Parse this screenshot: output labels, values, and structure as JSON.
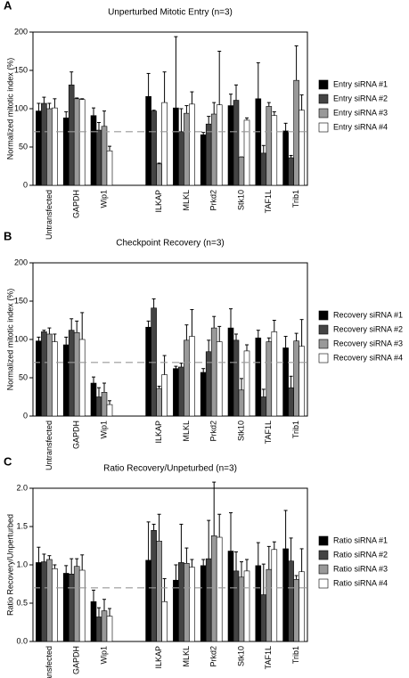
{
  "chart_data": [
    {
      "type": "bar",
      "panel_label": "A",
      "title": "Unperturbed Mitotic Entry (n=3)",
      "y_label": "Normalized mitotic index (%)",
      "categories": [
        "Untransfected",
        "GAPDH",
        "Wip1",
        null,
        "ILKAP",
        "MLKL",
        "Prkd2",
        "Stk10",
        "TAF1L",
        "Trib1"
      ],
      "series": [
        {
          "name": "Entry siRNA #1",
          "color": "#000000",
          "values": [
            97,
            88,
            91,
            null,
            116,
            101,
            66,
            104,
            113,
            71
          ],
          "errors": [
            10,
            8,
            10,
            null,
            30,
            93,
            3,
            15,
            47,
            10
          ]
        },
        {
          "name": "Entry siRNA #2",
          "color": "#444444",
          "values": [
            107,
            131,
            72,
            null,
            97,
            70,
            80,
            111,
            42,
            36
          ],
          "errors": [
            8,
            17,
            10,
            null,
            1,
            30,
            10,
            20,
            10,
            3
          ]
        },
        {
          "name": "Entry siRNA #3",
          "color": "#999999",
          "values": [
            100,
            113,
            77,
            null,
            28,
            94,
            93,
            37,
            103,
            137
          ],
          "errors": [
            7,
            1,
            20,
            null,
            1,
            10,
            15,
            0,
            5,
            45
          ]
        },
        {
          "name": "Entry siRNA #4",
          "color": "#ffffff",
          "values": [
            101,
            112,
            45,
            null,
            108,
            106,
            105,
            85,
            91,
            98
          ],
          "errors": [
            12,
            1,
            6,
            null,
            40,
            16,
            70,
            3,
            5,
            20
          ]
        }
      ],
      "ylim": [
        0,
        200
      ],
      "yticks": [
        0,
        50,
        100,
        150,
        200
      ],
      "reference_line": 70,
      "grid": false,
      "legend": "right"
    },
    {
      "type": "bar",
      "panel_label": "B",
      "title": "Checkpoint Recovery (n=3)",
      "y_label": "Normalized mitotic index (%)",
      "categories": [
        "Untransfected",
        "GAPDH",
        "Wip1",
        null,
        "ILKAP",
        "MLKL",
        "Prkd2",
        "Stk10",
        "TAF1L",
        "Trib1"
      ],
      "series": [
        {
          "name": "Recovery siRNA #1",
          "color": "#000000",
          "values": [
            98,
            93,
            43,
            null,
            116,
            62,
            57,
            115,
            102,
            89
          ],
          "errors": [
            5,
            10,
            8,
            null,
            8,
            3,
            5,
            25,
            10,
            15
          ]
        },
        {
          "name": "Recovery siRNA #2",
          "color": "#444444",
          "values": [
            110,
            112,
            25,
            null,
            141,
            64,
            84,
            99,
            25,
            37
          ],
          "errors": [
            2,
            15,
            12,
            null,
            12,
            5,
            15,
            8,
            10,
            15
          ]
        },
        {
          "name": "Recovery siRNA #3",
          "color": "#999999",
          "values": [
            107,
            109,
            31,
            null,
            36,
            99,
            115,
            34,
            97,
            98
          ],
          "errors": [
            8,
            15,
            12,
            null,
            3,
            20,
            15,
            15,
            5,
            10
          ]
        },
        {
          "name": "Recovery siRNA #4",
          "color": "#ffffff",
          "values": [
            97,
            100,
            15,
            null,
            54,
            104,
            97,
            85,
            110,
            91
          ],
          "errors": [
            10,
            35,
            5,
            null,
            25,
            35,
            20,
            8,
            15,
            35
          ]
        }
      ],
      "ylim": [
        0,
        200
      ],
      "yticks": [
        0,
        50,
        100,
        150,
        200
      ],
      "reference_line": 70,
      "grid": false,
      "legend": "right"
    },
    {
      "type": "bar",
      "panel_label": "C",
      "title": "Ratio Recovery/Unpeturbed (n=3)",
      "y_label": "Ratio Recovery/Unperturbed",
      "categories": [
        "Untransfected",
        "GAPDH",
        "Wip1",
        null,
        "ILKAP",
        "MLKL",
        "Prkd2",
        "Stk10",
        "TAF1L",
        "Trib1"
      ],
      "series": [
        {
          "name": "Ratio siRNA #1",
          "color": "#000000",
          "values": [
            1.03,
            0.89,
            0.52,
            null,
            1.06,
            0.8,
            0.99,
            1.18,
            0.99,
            1.21
          ],
          "errors": [
            0.2,
            0.1,
            0.15,
            null,
            0.5,
            0.2,
            0.08,
            0.5,
            0.3,
            0.5
          ]
        },
        {
          "name": "Ratio siRNA #2",
          "color": "#444444",
          "values": [
            1.04,
            0.88,
            0.32,
            null,
            1.45,
            1.03,
            1.08,
            0.92,
            0.61,
            1.05
          ],
          "errors": [
            0.1,
            0.2,
            0.12,
            null,
            0.08,
            0.5,
            0.5,
            0.25,
            0.4,
            0.3
          ]
        },
        {
          "name": "Ratio siRNA #3",
          "color": "#999999",
          "values": [
            1.07,
            0.98,
            0.4,
            null,
            1.31,
            1.02,
            1.38,
            0.84,
            0.94,
            0.81
          ],
          "errors": [
            0.05,
            0.1,
            0.15,
            null,
            0.35,
            0.2,
            0.7,
            0.2,
            0.3,
            0.05
          ]
        },
        {
          "name": "Ratio siRNA #4",
          "color": "#ffffff",
          "values": [
            0.95,
            0.93,
            0.33,
            null,
            0.52,
            0.97,
            1.36,
            0.92,
            1.2,
            0.91
          ],
          "errors": [
            0.05,
            0.2,
            0.1,
            null,
            0.3,
            0.1,
            0.3,
            0.15,
            0.1,
            0.3
          ]
        }
      ],
      "ylim": [
        0,
        2
      ],
      "yticks": [
        {
          "value": 0,
          "label": "0.0"
        },
        0.5,
        {
          "value": 1,
          "label": "1.0"
        },
        1.5,
        {
          "value": 2,
          "label": "2.0"
        }
      ],
      "reference_line": 0.7,
      "grid": false,
      "legend": "right"
    }
  ]
}
